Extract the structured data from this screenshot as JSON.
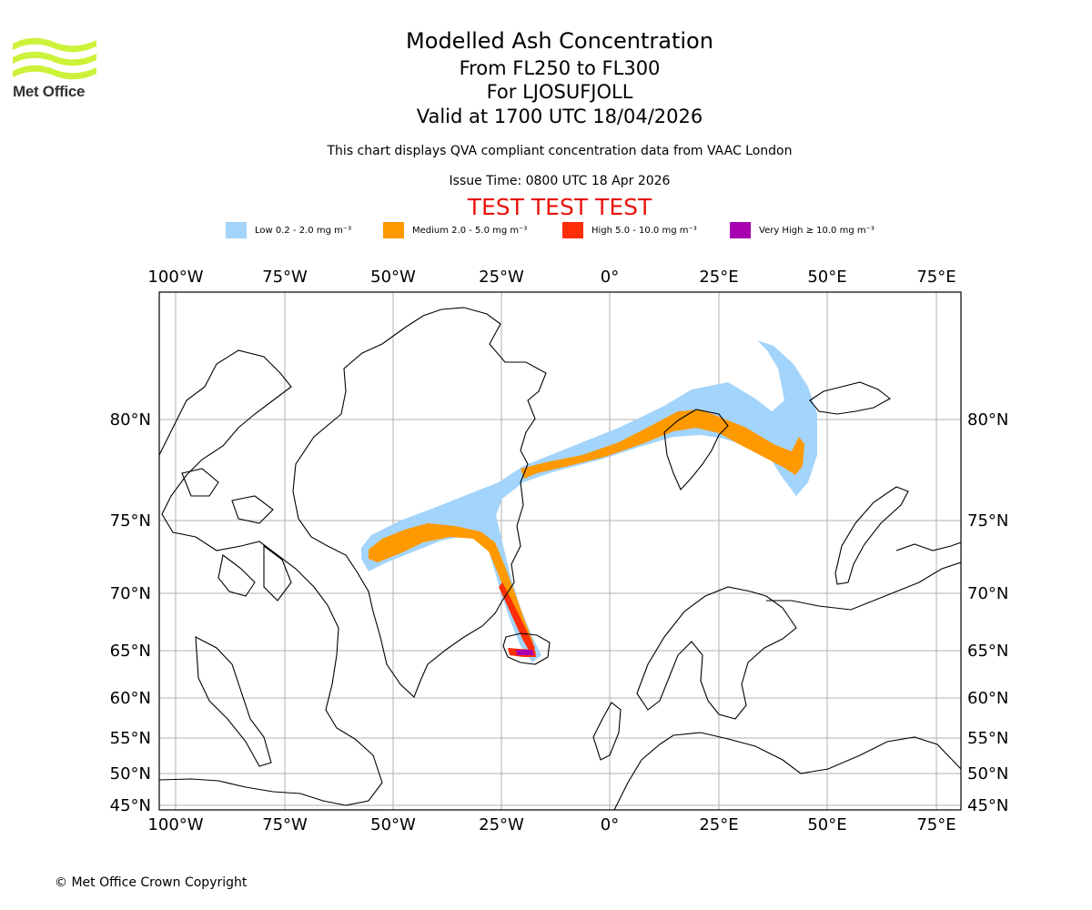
{
  "header": {
    "title": "Modelled Ash Concentration",
    "flight_levels": "From FL250 to FL300",
    "location": "For LJOSUFJOLL",
    "valid_time": "Valid at 1700 UTC 18/04/2026",
    "subtitle": "This chart displays QVA compliant concentration data from VAAC London",
    "issue_time": "Issue Time: 0800 UTC 18 Apr 2026",
    "test_banner": "TEST TEST TEST"
  },
  "logo": {
    "text": "Met Office",
    "color": "#cdf23a"
  },
  "legend": [
    {
      "label": "Low 0.2 - 2.0 mg m⁻³",
      "color": "#a3d4fb"
    },
    {
      "label": "Medium 2.0 - 5.0 mg m⁻³",
      "color": "#fe9900"
    },
    {
      "label": "High 5.0 - 10.0 mg m⁻³",
      "color": "#fe2e08"
    },
    {
      "label": "Very High ≥ 10.0 mg m⁻³",
      "color": "#a800b0"
    }
  ],
  "map": {
    "lon_ticks": [
      "100°W",
      "75°W",
      "50°W",
      "25°W",
      "0°",
      "25°E",
      "50°E",
      "75°E"
    ],
    "lat_ticks": [
      "80°N",
      "75°N",
      "70°N",
      "65°N",
      "60°N",
      "55°N",
      "50°N",
      "45°N"
    ],
    "volcano": "LJOSUFJOLL"
  },
  "footer": {
    "copyright": "© Met Office Crown Copyright"
  }
}
